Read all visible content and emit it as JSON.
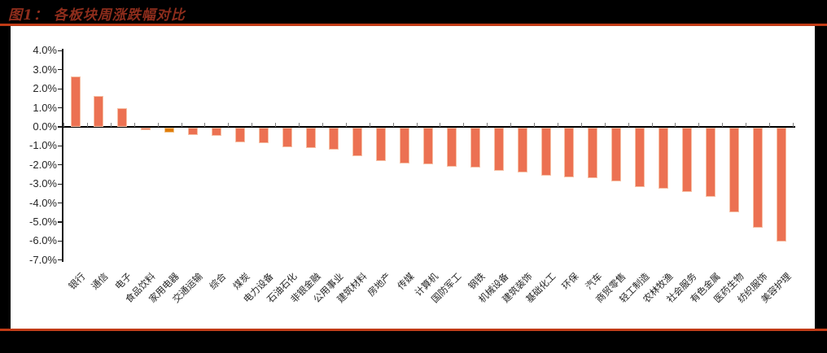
{
  "page": {
    "background": "#000000",
    "panel_background": "#ffffff",
    "rule_color": "#c13b16"
  },
  "header": {
    "title": "图1： 各板块周涨跌幅对比",
    "title_color": "#8e2d1c"
  },
  "chart_data": {
    "type": "bar",
    "title": "各板块周涨跌幅对比",
    "categories": [
      "银行",
      "通信",
      "电子",
      "食品饮料",
      "家用电器",
      "交通运输",
      "综合",
      "煤炭",
      "电力设备",
      "石油石化",
      "非银金融",
      "公用事业",
      "建筑材料",
      "房地产",
      "传媒",
      "计算机",
      "国防军工",
      "钢铁",
      "机械设备",
      "建筑装饰",
      "基础化工",
      "环保",
      "汽车",
      "商贸零售",
      "轻工制造",
      "农林牧渔",
      "社会服务",
      "有色金属",
      "医药生物",
      "纺织服饰",
      "美容护理"
    ],
    "values": [
      2.65,
      1.62,
      0.97,
      -0.13,
      -0.27,
      -0.41,
      -0.45,
      -0.78,
      -0.82,
      -1.02,
      -1.07,
      -1.15,
      -1.5,
      -1.76,
      -1.9,
      -1.95,
      -2.06,
      -2.12,
      -2.26,
      -2.34,
      -2.55,
      -2.6,
      -2.65,
      -2.81,
      -3.14,
      -3.21,
      -3.4,
      -3.66,
      -4.45,
      -5.26,
      -5.99
    ],
    "unit": "%",
    "ylim": [
      -7,
      4
    ],
    "ytick_step": 1,
    "ytick_labels": [
      "4.0%",
      "3.0%",
      "2.0%",
      "1.0%",
      "0.0%",
      "-1.0%",
      "-2.0%",
      "-3.0%",
      "-4.0%",
      "-5.0%",
      "-6.0%",
      "-7.0%"
    ],
    "bar_color": "#ec7152",
    "bar_border_color": "#f6bfa4",
    "highlight_index": 4,
    "highlight_color": "#e07d08",
    "highlight_border_color": "#efc189",
    "axis_color": "#1a1a1a",
    "category_tick_color": "#7f7f7f",
    "label_color": "#262626",
    "grid": false,
    "legend": "none",
    "x_label_rotation": -45
  }
}
